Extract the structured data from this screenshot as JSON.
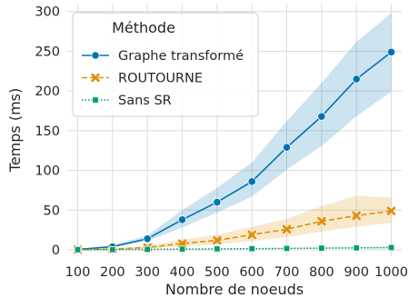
{
  "chart_data": {
    "type": "line",
    "xlabel": "Nombre de noeuds",
    "ylabel": "Temps (ms)",
    "x": [
      100,
      200,
      300,
      400,
      500,
      600,
      700,
      800,
      900,
      1000
    ],
    "x_ticks": [
      "100",
      "200",
      "300",
      "400",
      "500",
      "600",
      "700",
      "800",
      "900",
      "1000"
    ],
    "y_ticks": [
      0,
      50,
      100,
      150,
      200,
      250,
      300
    ],
    "ylim": [
      -8,
      310
    ],
    "grid": true,
    "legend": {
      "title": "Méthode",
      "placement": "top-left"
    },
    "series": [
      {
        "name": "Graphe transformé",
        "color": "#0173b2",
        "marker": "circle",
        "linestyle": "solid",
        "values": [
          0.5,
          4,
          14,
          38,
          60,
          86,
          129,
          168,
          215,
          249
        ],
        "band_low": [
          0.2,
          3,
          11,
          28,
          47,
          67,
          101,
          131,
          168,
          199
        ],
        "band_high": [
          1,
          6,
          18,
          50,
          78,
          110,
          162,
          210,
          262,
          298
        ]
      },
      {
        "name": "ROUTOURNE",
        "color": "#de8f05",
        "marker": "x",
        "linestyle": "dashed",
        "values": [
          0.2,
          1,
          3,
          8,
          12,
          19,
          26,
          36,
          43,
          49
        ],
        "band_low": [
          0.1,
          0.5,
          1.5,
          4,
          7,
          11,
          16,
          23,
          29,
          34
        ],
        "band_high": [
          0.4,
          1.5,
          5,
          13,
          19,
          29,
          39,
          55,
          68,
          66
        ]
      },
      {
        "name": "Sans SR",
        "color": "#029e73",
        "marker": "square",
        "linestyle": "dotted",
        "values": [
          0.1,
          0.3,
          0.6,
          0.9,
          1.2,
          1.5,
          1.8,
          2.2,
          2.5,
          2.9
        ],
        "band_low": [
          0.05,
          0.2,
          0.4,
          0.6,
          0.8,
          1.0,
          1.2,
          1.5,
          1.7,
          2.0
        ],
        "band_high": [
          0.15,
          0.4,
          0.8,
          1.2,
          1.6,
          2.0,
          2.4,
          2.9,
          3.3,
          3.8
        ]
      }
    ]
  }
}
